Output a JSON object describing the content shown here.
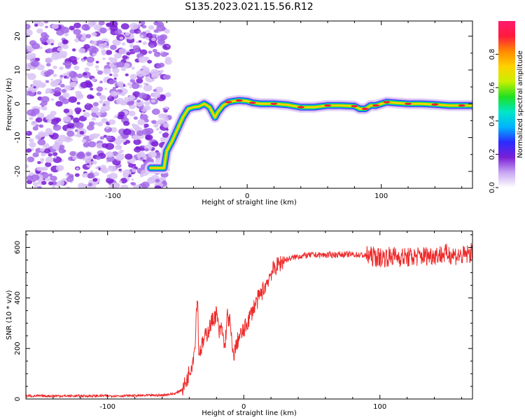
{
  "title": "S135.2023.021.15.56.R12",
  "colors": {
    "snr_line": "#ee2a2a",
    "spectrogram_noise": "#7b1fd8",
    "colormap": [
      "#ffffff",
      "#c8a6f2",
      "#7a1fd6",
      "#2b2bff",
      "#00b4ff",
      "#00e6c8",
      "#1fe01f",
      "#c8f000",
      "#ffd200",
      "#ff8a00",
      "#ff1a3c",
      "#ff1a6e"
    ]
  },
  "chart_data": [
    {
      "type": "heatmap",
      "xlabel": "Height of straight line (km)",
      "ylabel": "Frequency (Hz)",
      "xlim": [
        -165,
        168
      ],
      "ylim": [
        -25,
        24.5
      ],
      "x_ticks": [
        -100,
        0,
        100
      ],
      "y_ticks": [
        20,
        10,
        0,
        -10,
        -20
      ],
      "ridge_x": [
        -72,
        -62,
        -60,
        -56,
        -52,
        -48,
        -44,
        -40,
        -36,
        -32,
        -28,
        -24,
        -22,
        -18,
        -14,
        -10,
        -6,
        0,
        4,
        10,
        20,
        30,
        40,
        50,
        60,
        70,
        80,
        84,
        88,
        92,
        96,
        100,
        104,
        110,
        120,
        130,
        140,
        150,
        160,
        168
      ],
      "ridge_freq": [
        -19,
        -19,
        -14,
        -11,
        -7.5,
        -4,
        -1.5,
        -1,
        -0.8,
        0,
        -1,
        -4,
        -2.5,
        -0.5,
        0.5,
        0.8,
        1,
        0.8,
        0.3,
        0,
        0,
        -0.3,
        -1,
        -1,
        -0.5,
        -0.5,
        -0.7,
        -1.5,
        -1.5,
        -0.5,
        -0.5,
        0,
        0.5,
        0.3,
        0,
        0,
        -0.2,
        -0.5,
        -0.5,
        -0.5
      ]
    },
    {
      "type": "colorbar",
      "label": "Normalized spectral amplitude",
      "ticks": [
        "0.0",
        "0.2",
        "0.4",
        "0.6",
        "0.8"
      ],
      "range": [
        0,
        1
      ]
    },
    {
      "type": "line",
      "xlabel": "Height of straight line (km)",
      "ylabel": "SNR (10 * v/v)",
      "xlim": [
        -160,
        168
      ],
      "ylim": [
        0,
        665
      ],
      "x_ticks": [
        -100,
        0,
        100
      ],
      "y_ticks": [
        0,
        200,
        400,
        600
      ],
      "series": [
        {
          "x": [
            -160,
            -120,
            -80,
            -60,
            -50,
            -45,
            -42,
            -40,
            -38,
            -36,
            -35,
            -34,
            -33,
            -30,
            -28,
            -26,
            -24,
            -22,
            -20,
            -18,
            -16,
            -14,
            -12,
            -10,
            -8,
            -6,
            -4,
            0,
            4,
            8,
            12,
            16,
            20,
            25,
            30,
            40,
            50,
            60,
            70,
            80,
            90,
            100,
            110,
            120,
            130,
            140,
            150,
            160,
            168
          ],
          "y": [
            12,
            12,
            13,
            15,
            22,
            40,
            70,
            110,
            140,
            200,
            320,
            420,
            180,
            220,
            250,
            270,
            300,
            320,
            340,
            260,
            280,
            200,
            330,
            300,
            170,
            200,
            240,
            270,
            320,
            370,
            410,
            450,
            500,
            530,
            550,
            565,
            570,
            570,
            572,
            572,
            568,
            560,
            565,
            560,
            565,
            570,
            575,
            565,
            580
          ]
        }
      ]
    }
  ]
}
